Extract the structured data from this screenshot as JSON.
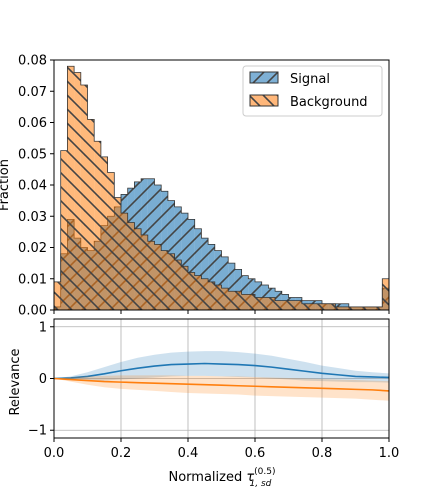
{
  "chart_data": [
    {
      "type": "histogram",
      "xlim": [
        0.0,
        1.0
      ],
      "ylim": [
        0.0,
        0.08
      ],
      "ylabel": "Fraction",
      "xticks": [
        0.0,
        0.2,
        0.4,
        0.6,
        0.8,
        1.0
      ],
      "yticks": [
        "0.00",
        "0.01",
        "0.02",
        "0.03",
        "0.04",
        "0.05",
        "0.06",
        "0.07",
        "0.08"
      ],
      "legend_position": "top-right",
      "bin_width": 0.02,
      "series": [
        {
          "name": "Signal",
          "color": "#1f77b4",
          "hatch": "//",
          "bin_edges_start": 0.0,
          "values": [
            0.001,
            0.018,
            0.029,
            0.023,
            0.02,
            0.019,
            0.022,
            0.027,
            0.03,
            0.033,
            0.037,
            0.039,
            0.041,
            0.042,
            0.042,
            0.04,
            0.038,
            0.035,
            0.033,
            0.031,
            0.029,
            0.026,
            0.023,
            0.021,
            0.019,
            0.017,
            0.015,
            0.013,
            0.011,
            0.01,
            0.009,
            0.008,
            0.007,
            0.006,
            0.005,
            0.004,
            0.004,
            0.003,
            0.003,
            0.003,
            0.002,
            0.002,
            0.002,
            0.002,
            0.001,
            0.001,
            0.001,
            0.001,
            0.001,
            0.007
          ]
        },
        {
          "name": "Background",
          "color": "#ff7f0e",
          "hatch": "\\\\",
          "bin_edges_start": 0.0,
          "values": [
            0.009,
            0.051,
            0.078,
            0.076,
            0.072,
            0.061,
            0.054,
            0.049,
            0.044,
            0.036,
            0.031,
            0.028,
            0.026,
            0.024,
            0.022,
            0.021,
            0.019,
            0.018,
            0.016,
            0.014,
            0.012,
            0.011,
            0.01,
            0.009,
            0.008,
            0.007,
            0.006,
            0.006,
            0.005,
            0.005,
            0.004,
            0.004,
            0.004,
            0.003,
            0.003,
            0.003,
            0.003,
            0.002,
            0.002,
            0.002,
            0.002,
            0.002,
            0.001,
            0.001,
            0.001,
            0.001,
            0.001,
            0.001,
            0.001,
            0.01
          ]
        }
      ]
    },
    {
      "type": "line",
      "xlim": [
        0.0,
        1.0
      ],
      "ylim": [
        -1.15,
        1.15
      ],
      "xlabel_prefix": "Normalized ",
      "xlabel_symbol": "τ",
      "xlabel_sup": "(0.5)",
      "xlabel_sub": "1, sd",
      "ylabel": "Relevance",
      "xticks": [
        "0.0",
        "0.2",
        "0.4",
        "0.6",
        "0.8",
        "1.0"
      ],
      "yticks": [
        -1,
        0,
        1
      ],
      "ytick_labels": [
        "−1",
        "0",
        "1"
      ],
      "grid": true,
      "x": [
        0.0,
        0.05,
        0.1,
        0.15,
        0.2,
        0.25,
        0.3,
        0.35,
        0.4,
        0.45,
        0.5,
        0.55,
        0.6,
        0.65,
        0.7,
        0.75,
        0.8,
        0.85,
        0.9,
        0.95,
        1.0
      ],
      "series": [
        {
          "color": "#1f77b4",
          "mean": [
            0.0,
            0.01,
            0.04,
            0.09,
            0.15,
            0.2,
            0.24,
            0.27,
            0.28,
            0.29,
            0.28,
            0.27,
            0.25,
            0.22,
            0.18,
            0.14,
            0.1,
            0.07,
            0.04,
            0.03,
            0.02
          ],
          "upper": [
            0.0,
            0.04,
            0.12,
            0.22,
            0.32,
            0.4,
            0.46,
            0.5,
            0.52,
            0.53,
            0.53,
            0.51,
            0.48,
            0.44,
            0.38,
            0.32,
            0.25,
            0.2,
            0.15,
            0.12,
            0.1
          ],
          "lower": [
            0.0,
            -0.02,
            -0.03,
            -0.04,
            -0.02,
            0.0,
            0.02,
            0.04,
            0.05,
            0.05,
            0.04,
            0.03,
            0.02,
            0.0,
            -0.02,
            -0.04,
            -0.05,
            -0.06,
            -0.07,
            -0.07,
            -0.08
          ]
        },
        {
          "color": "#ff7f0e",
          "mean": [
            0.0,
            -0.02,
            -0.04,
            -0.06,
            -0.07,
            -0.08,
            -0.09,
            -0.1,
            -0.11,
            -0.12,
            -0.13,
            -0.14,
            -0.15,
            -0.16,
            -0.17,
            -0.18,
            -0.19,
            -0.2,
            -0.21,
            -0.22,
            -0.24
          ],
          "upper": [
            0.0,
            0.02,
            0.04,
            0.05,
            0.06,
            0.06,
            0.06,
            0.06,
            0.05,
            0.05,
            0.04,
            0.04,
            0.03,
            0.02,
            0.01,
            0.0,
            -0.01,
            -0.02,
            -0.03,
            -0.04,
            -0.05
          ],
          "lower": [
            0.0,
            -0.06,
            -0.12,
            -0.17,
            -0.2,
            -0.22,
            -0.24,
            -0.26,
            -0.28,
            -0.29,
            -0.3,
            -0.31,
            -0.33,
            -0.34,
            -0.35,
            -0.36,
            -0.37,
            -0.38,
            -0.39,
            -0.41,
            -0.43
          ]
        }
      ]
    }
  ]
}
